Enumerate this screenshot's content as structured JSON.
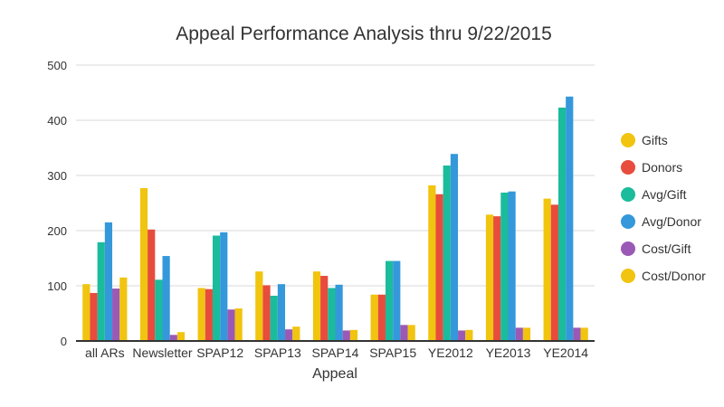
{
  "chart_data": {
    "type": "bar",
    "title": "Appeal Performance Analysis thru 9/22/2015",
    "xlabel": "Appeal",
    "ylabel": "",
    "ylim": [
      0,
      500
    ],
    "yticks": [
      0,
      100,
      200,
      300,
      400,
      500
    ],
    "grid": true,
    "legend_position": "right",
    "categories": [
      "all ARs",
      "Newsletter",
      "SPAP12",
      "SPAP13",
      "SPAP14",
      "SPAP15",
      "YE2012",
      "YE2013",
      "YE2014"
    ],
    "series": [
      {
        "name": "Gifts",
        "color": "#f1c40f",
        "values": [
          103,
          277,
          96,
          126,
          126,
          84,
          282,
          229,
          258
        ]
      },
      {
        "name": "Donors",
        "color": "#e74c3c",
        "values": [
          87,
          202,
          94,
          101,
          118,
          84,
          266,
          226,
          247
        ]
      },
      {
        "name": "Avg/Gift",
        "color": "#1abc9c",
        "values": [
          179,
          111,
          191,
          82,
          96,
          145,
          318,
          269,
          423
        ]
      },
      {
        "name": "Avg/Donor",
        "color": "#3498db",
        "values": [
          215,
          154,
          197,
          103,
          102,
          145,
          339,
          271,
          443
        ]
      },
      {
        "name": "Cost/Gift",
        "color": "#9b59b6",
        "values": [
          95,
          11,
          57,
          21,
          19,
          29,
          19,
          24,
          24
        ]
      },
      {
        "name": "Cost/Donor",
        "color": "#f1c40f",
        "values": [
          115,
          16,
          59,
          26,
          20,
          29,
          20,
          24,
          24
        ]
      }
    ]
  }
}
